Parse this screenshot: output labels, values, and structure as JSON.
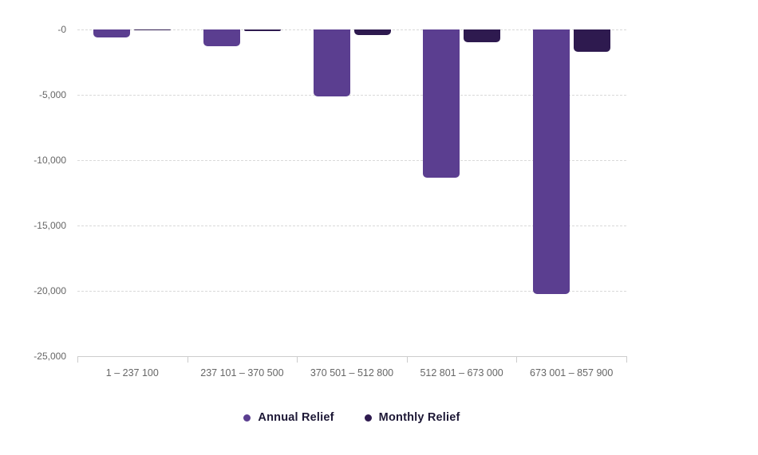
{
  "chart_data": {
    "type": "bar",
    "title": "",
    "xlabel": "",
    "ylabel": "",
    "categories": [
      "1 – 237 100",
      "237 101 – 370 500",
      "370 501 – 512 800",
      "512 801 – 673 000",
      "673 001 – 857 900"
    ],
    "series": [
      {
        "name": "Annual Relief",
        "color": "#5b3e90",
        "values": [
          -620,
          -1280,
          -5150,
          -11370,
          -20270
        ]
      },
      {
        "name": "Monthly Relief",
        "color": "#2e1a4f",
        "values": [
          -52,
          -107,
          -429,
          -947,
          -1689
        ]
      }
    ],
    "ylim": [
      -25000,
      0
    ],
    "yticks": [
      0,
      -5000,
      -10000,
      -15000,
      -20000,
      -25000
    ],
    "ytick_labels": [
      "-0",
      "-5,000",
      "-10,000",
      "-15,000",
      "-20,000",
      "-25,000"
    ],
    "grid": "horizontal-dashed",
    "legend_position": "bottom-center",
    "colors": {
      "gridline": "#d9d9d9",
      "baseline": "#cccccc",
      "axis_text": "#666666",
      "legend_text": "#1d1836",
      "background": "#ffffff"
    }
  }
}
